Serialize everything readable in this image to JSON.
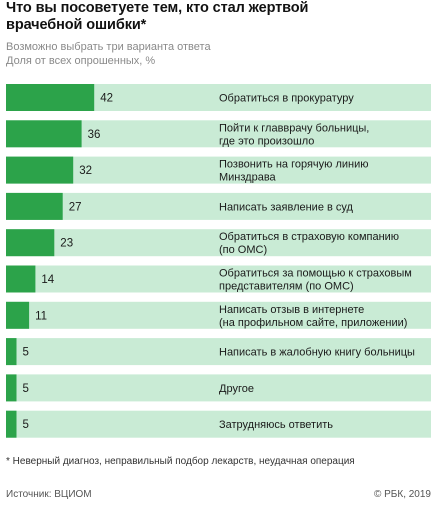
{
  "header": {
    "title_line1": "Что вы посоветуете тем, кто стал жертвой",
    "title_line2": "врачебной ошибки*",
    "subtitle1": "Возможно выбрать три варианта ответа",
    "subtitle2": "Доля от всех опрошенных, %"
  },
  "colors": {
    "bar": "#2ca34a",
    "track": "#c9ebd5",
    "value_text": "#1a1a1a",
    "label_text": "#1a1a1a"
  },
  "chart_data": {
    "type": "bar",
    "orientation": "horizontal",
    "categories": [
      [
        "Обратиться в прокуратуру"
      ],
      [
        "Пойти к главврачу больницы,",
        "где это произошло"
      ],
      [
        "Позвонить на горячую линию",
        "Минздрава"
      ],
      [
        "Написать заявление в суд"
      ],
      [
        "Обратиться в страховую компанию",
        "(по ОМС)"
      ],
      [
        "Обратиться за помощью к страховым",
        "представителям (по ОМС)"
      ],
      [
        "Написать отзыв в интернете",
        "(на профильном сайте, приложении)"
      ],
      [
        "Написать в жалобную книгу больницы"
      ],
      [
        "Другое"
      ],
      [
        "Затрудняюсь ответить"
      ]
    ],
    "values": [
      42,
      36,
      32,
      27,
      23,
      14,
      11,
      5,
      5,
      5
    ],
    "xlim": [
      0,
      100
    ],
    "grid": false,
    "legend": "none"
  },
  "footer": {
    "footnote": "* Неверный диагноз, неправильный подбор лекарств, неудачная операция",
    "source": "Источник: ВЦИОМ",
    "copyright": "© РБК, 2019"
  }
}
